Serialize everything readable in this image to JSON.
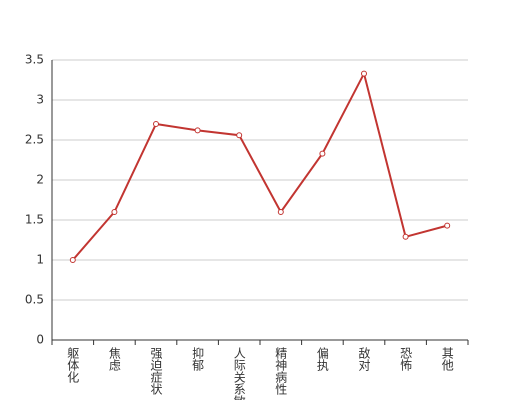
{
  "chart_data": {
    "type": "line",
    "categories": [
      "躯体化",
      "焦虑",
      "强迫症状",
      "抑郁",
      "人际关系敏感",
      "精神病性",
      "偏执",
      "敌对",
      "恐怖",
      "其他"
    ],
    "values": [
      1.0,
      1.6,
      2.7,
      2.62,
      2.56,
      1.6,
      2.33,
      3.33,
      1.29,
      1.43
    ],
    "color": "#c23531",
    "ylim": [
      0,
      3.5
    ],
    "yticks": [
      0,
      0.5,
      1,
      1.5,
      2,
      2.5,
      3,
      3.5
    ],
    "grid": true
  }
}
